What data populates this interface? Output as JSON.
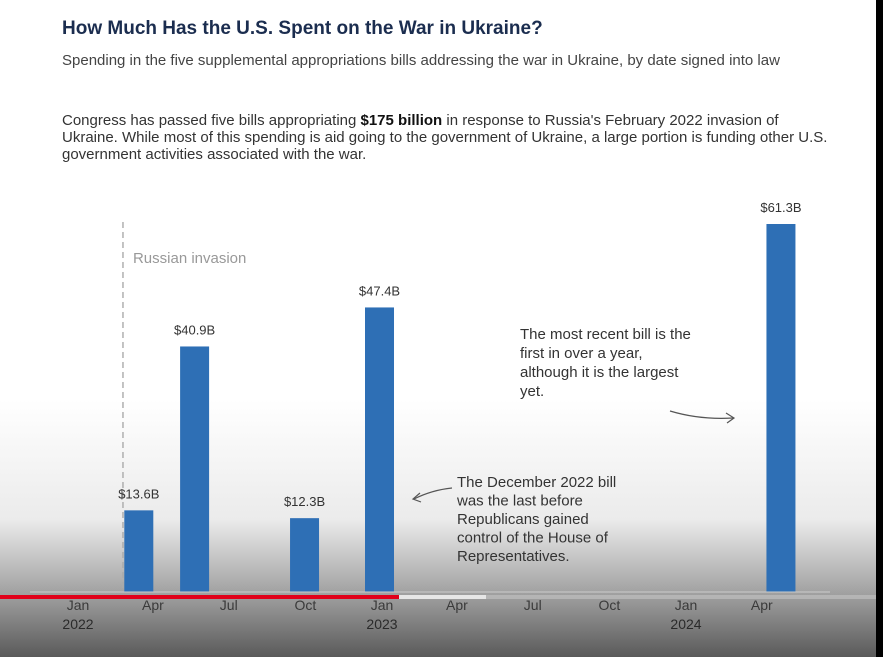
{
  "header": {
    "title": "How Much Has the U.S. Spent on the War in Ukraine?",
    "subtitle": "Spending in the five supplemental appropriations bills addressing the war in Ukraine, by date signed into law",
    "body_before": "Congress has passed five bills appropriating ",
    "body_bold": "$175 billion",
    "body_after": " in response to Russia's February 2022 invasion of Ukraine. While most of this spending is aid going to the government of Ukraine, a large portion is funding other U.S. government activities associated with the war."
  },
  "chart_data": {
    "type": "bar",
    "title": "How Much Has the U.S. Spent on the War in Ukraine?",
    "subtitle": "Spending in the five supplemental appropriations bills addressing the war in Ukraine, by date signed into law",
    "unit": "billions of dollars",
    "x_axis": {
      "type": "date",
      "range": [
        "2022-01-01",
        "2024-05-15"
      ],
      "ticks": [
        {
          "date": "2022-01-01",
          "label": "Jan",
          "year": "2022"
        },
        {
          "date": "2022-04-01",
          "label": "Apr",
          "year": ""
        },
        {
          "date": "2022-07-01",
          "label": "Jul",
          "year": ""
        },
        {
          "date": "2022-10-01",
          "label": "Oct",
          "year": ""
        },
        {
          "date": "2023-01-01",
          "label": "Jan",
          "year": "2023"
        },
        {
          "date": "2023-04-01",
          "label": "Apr",
          "year": ""
        },
        {
          "date": "2023-07-01",
          "label": "Jul",
          "year": ""
        },
        {
          "date": "2023-10-01",
          "label": "Oct",
          "year": ""
        },
        {
          "date": "2024-01-01",
          "label": "Jan",
          "year": "2024"
        },
        {
          "date": "2024-04-01",
          "label": "Apr",
          "year": ""
        }
      ]
    },
    "ylim": [
      0,
      61.3
    ],
    "grid": false,
    "bar_color": "#2e6fb5",
    "bars": [
      {
        "date": "2022-03-15",
        "value": 13.6,
        "label": "$13.6B"
      },
      {
        "date": "2022-05-21",
        "value": 40.9,
        "label": "$40.9B"
      },
      {
        "date": "2022-09-30",
        "value": 12.3,
        "label": "$12.3B"
      },
      {
        "date": "2022-12-29",
        "value": 47.4,
        "label": "$47.4B"
      },
      {
        "date": "2024-04-24",
        "value": 61.3,
        "label": "$61.3B"
      }
    ],
    "reference_line": {
      "date": "2022-02-24",
      "label": "Russian invasion"
    },
    "annotations": [
      {
        "id": "dec-2022",
        "text": [
          "The December 2022 bill",
          "was the last before",
          "Republicans gained",
          "control of the House of",
          "Representatives."
        ]
      },
      {
        "id": "recent",
        "text": [
          "The most recent bill is the",
          "first in over a year,",
          "although it is the largest",
          "yet."
        ]
      }
    ]
  },
  "video_player": {
    "progress_played": 0.455,
    "progress_loaded": 0.555
  }
}
